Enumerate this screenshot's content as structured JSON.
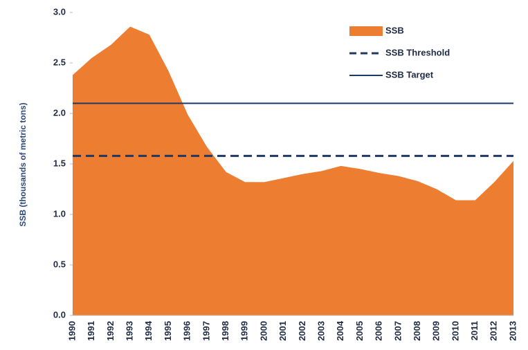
{
  "chart_data": {
    "type": "area",
    "y_label": "SSB (thousands of metric tons)",
    "categories": [
      "1990",
      "1991",
      "1992",
      "1993",
      "1994",
      "1995",
      "1996",
      "1997",
      "1998",
      "1999",
      "2000",
      "2001",
      "2002",
      "2003",
      "2004",
      "2005",
      "2006",
      "2007",
      "2008",
      "2009",
      "2010",
      "2011",
      "2012",
      "2013"
    ],
    "series": [
      {
        "name": "SSB",
        "color": "#ed7d31",
        "values": [
          2.38,
          2.55,
          2.68,
          2.86,
          2.78,
          2.42,
          1.99,
          1.67,
          1.42,
          1.32,
          1.32,
          1.36,
          1.4,
          1.43,
          1.48,
          1.45,
          1.41,
          1.38,
          1.33,
          1.25,
          1.14,
          1.14,
          1.32,
          1.53
        ]
      }
    ],
    "reference_lines": [
      {
        "name": "SSB Threshold",
        "value": 1.58,
        "color": "#1f3864",
        "style": "dashed"
      },
      {
        "name": "SSB Target",
        "value": 2.1,
        "color": "#1f3864",
        "style": "solid"
      }
    ],
    "ylim": [
      0,
      3
    ],
    "yticks": [
      {
        "value": 0,
        "label": "0.0"
      },
      0.5,
      {
        "value": 1,
        "label": "1.0"
      },
      1.5,
      {
        "value": 2,
        "label": "2.0"
      },
      2.5,
      {
        "value": 3,
        "label": "3.0"
      }
    ],
    "legend": "upper right",
    "grid": false
  }
}
